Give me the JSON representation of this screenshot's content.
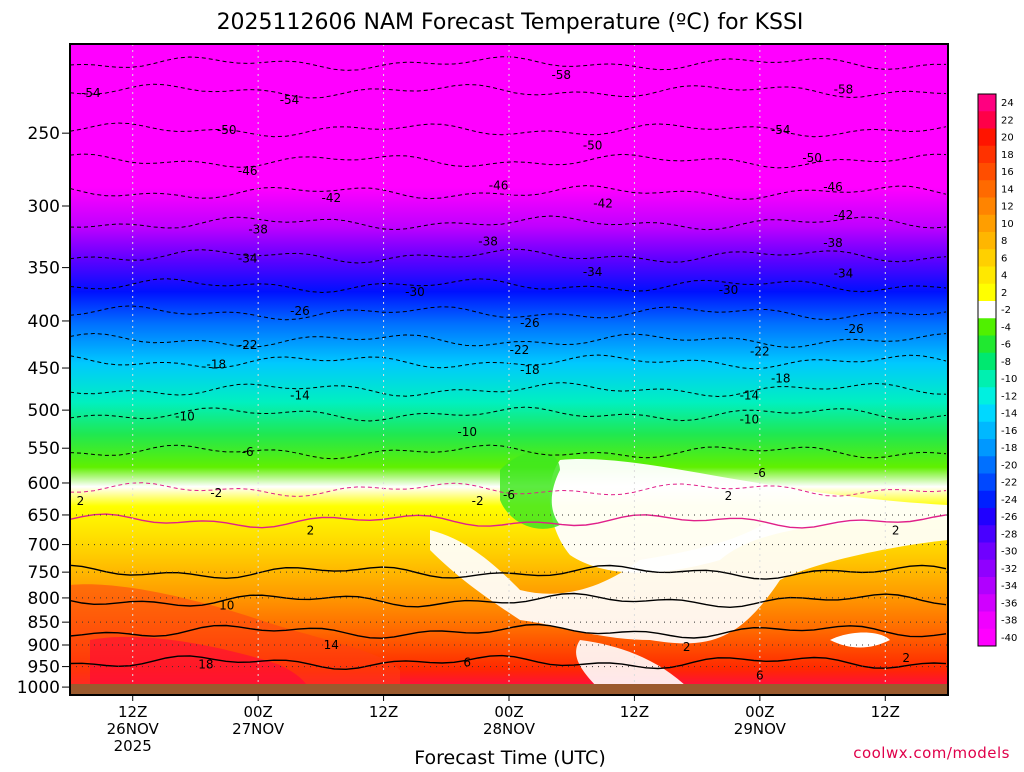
{
  "colors": {
    "credit": "#e0004a",
    "frame": "#000000",
    "ground": "#9b5a2e"
  },
  "chart_data": {
    "type": "heatmap",
    "title": "2025112606 NAM Forecast Temperature (ºC) for KSSI",
    "xlabel": "Forecast Time (UTC)",
    "ylabel": "",
    "credit": "coolwx.com/models",
    "y_axis": {
      "scale": "log",
      "ylim": [
        1020,
        200
      ],
      "ticks": [
        250,
        300,
        350,
        400,
        450,
        500,
        550,
        600,
        650,
        700,
        750,
        800,
        850,
        900,
        950,
        1000
      ]
    },
    "x_axis": {
      "ticks": [
        {
          "time": "12Z",
          "date": "26NOV",
          "year": "2025"
        },
        {
          "time": "00Z",
          "date": "27NOV",
          "year": ""
        },
        {
          "time": "12Z",
          "date": "",
          "year": ""
        },
        {
          "time": "00Z",
          "date": "28NOV",
          "year": ""
        },
        {
          "time": "12Z",
          "date": "",
          "year": ""
        },
        {
          "time": "00Z",
          "date": "29NOV",
          "year": ""
        },
        {
          "time": "12Z",
          "date": "",
          "year": ""
        }
      ],
      "xlim": [
        "2025-11-26 06Z",
        "2025-11-29 18Z"
      ]
    },
    "grid": true,
    "colorbar": {
      "placement": "right",
      "labels": [
        "24",
        "22",
        "20",
        "18",
        "16",
        "14",
        "12",
        "10",
        "8",
        "6",
        "4",
        "2",
        "-2",
        "-4",
        "-6",
        "-8",
        "-10",
        "-12",
        "-14",
        "-16",
        "-18",
        "-20",
        "-22",
        "-24",
        "-26",
        "-28",
        "-30",
        "-32",
        "-34",
        "-36",
        "-38",
        "-40"
      ],
      "colors": [
        "#ff0080",
        "#ff0048",
        "#ff1400",
        "#ff3200",
        "#ff4e00",
        "#ff6a00",
        "#ff8400",
        "#ff9e00",
        "#ffb600",
        "#ffd000",
        "#ffe800",
        "#ffff00",
        "#ffffff",
        "#50f000",
        "#20e830",
        "#00e870",
        "#00f0b0",
        "#00f0e0",
        "#00d8ff",
        "#00b8ff",
        "#0098ff",
        "#0070ff",
        "#0048ff",
        "#0020ff",
        "#2000ff",
        "#4800ff",
        "#7000ff",
        "#9000ff",
        "#b000ff",
        "#d000ff",
        "#f000ff",
        "#ff00ff"
      ]
    },
    "temperature_levels_profile": [
      {
        "value": -58,
        "pressure": 210
      },
      {
        "value": -54,
        "pressure": 225
      },
      {
        "value": -50,
        "pressure": 248
      },
      {
        "value": -46,
        "pressure": 268
      },
      {
        "value": -42,
        "pressure": 290
      },
      {
        "value": -38,
        "pressure": 313
      },
      {
        "value": -34,
        "pressure": 340
      },
      {
        "value": -30,
        "pressure": 366
      },
      {
        "value": -26,
        "pressure": 392
      },
      {
        "value": -22,
        "pressure": 420
      },
      {
        "value": -18,
        "pressure": 443
      },
      {
        "value": -14,
        "pressure": 475
      },
      {
        "value": -10,
        "pressure": 505
      },
      {
        "value": -6,
        "pressure": 555
      },
      {
        "value": -2,
        "pressure": 610
      },
      {
        "value": 2,
        "pressure": 660
      },
      {
        "value": 6,
        "pressure": 750
      },
      {
        "value": 10,
        "pressure": 805
      },
      {
        "value": 14,
        "pressure": 870
      },
      {
        "value": 18,
        "pressure": 940
      }
    ],
    "contour_labels": [
      {
        "text": "-54",
        "time": "2025-11-26 08Z",
        "pressure": 226
      },
      {
        "text": "-54",
        "time": "2025-11-27 03Z",
        "pressure": 230
      },
      {
        "text": "-58",
        "time": "2025-11-28 05Z",
        "pressure": 216
      },
      {
        "text": "-58",
        "time": "2025-11-29 08Z",
        "pressure": 224
      },
      {
        "text": "-50",
        "time": "2025-11-26 21Z",
        "pressure": 248
      },
      {
        "text": "-50",
        "time": "2025-11-28 08Z",
        "pressure": 258
      },
      {
        "text": "-54",
        "time": "2025-11-29 02Z",
        "pressure": 248
      },
      {
        "text": "-46",
        "time": "2025-11-26 23Z",
        "pressure": 275
      },
      {
        "text": "-46",
        "time": "2025-11-27 23Z",
        "pressure": 285
      },
      {
        "text": "-50",
        "time": "2025-11-29 05Z",
        "pressure": 266
      },
      {
        "text": "-42",
        "time": "2025-11-27 07Z",
        "pressure": 294
      },
      {
        "text": "-42",
        "time": "2025-11-28 09Z",
        "pressure": 298
      },
      {
        "text": "-46",
        "time": "2025-11-29 07Z",
        "pressure": 286
      },
      {
        "text": "-38",
        "time": "2025-11-27 00Z",
        "pressure": 318
      },
      {
        "text": "-38",
        "time": "2025-11-27 22Z",
        "pressure": 328
      },
      {
        "text": "-42",
        "time": "2025-11-29 08Z",
        "pressure": 307
      },
      {
        "text": "-34",
        "time": "2025-11-26 23Z",
        "pressure": 342
      },
      {
        "text": "-34",
        "time": "2025-11-28 08Z",
        "pressure": 354
      },
      {
        "text": "-38",
        "time": "2025-11-29 07Z",
        "pressure": 329
      },
      {
        "text": "-30",
        "time": "2025-11-27 15Z",
        "pressure": 372
      },
      {
        "text": "-30",
        "time": "2025-11-28 21Z",
        "pressure": 370
      },
      {
        "text": "-34",
        "time": "2025-11-29 08Z",
        "pressure": 355
      },
      {
        "text": "-26",
        "time": "2025-11-27 04Z",
        "pressure": 390
      },
      {
        "text": "-26",
        "time": "2025-11-28 02Z",
        "pressure": 402
      },
      {
        "text": "-26",
        "time": "2025-11-29 09Z",
        "pressure": 408
      },
      {
        "text": "-22",
        "time": "2025-11-26 23Z",
        "pressure": 425
      },
      {
        "text": "-22",
        "time": "2025-11-28 01Z",
        "pressure": 430
      },
      {
        "text": "-22",
        "time": "2025-11-29 00Z",
        "pressure": 432
      },
      {
        "text": "-18",
        "time": "2025-11-26 20Z",
        "pressure": 446
      },
      {
        "text": "-18",
        "time": "2025-11-28 02Z",
        "pressure": 452
      },
      {
        "text": "-18",
        "time": "2025-11-29 02Z",
        "pressure": 462
      },
      {
        "text": "-14",
        "time": "2025-11-27 04Z",
        "pressure": 482
      },
      {
        "text": "-14",
        "time": "2025-11-28 23Z",
        "pressure": 482
      },
      {
        "text": "-10",
        "time": "2025-11-26 17Z",
        "pressure": 508
      },
      {
        "text": "-10",
        "time": "2025-11-27 20Z",
        "pressure": 528
      },
      {
        "text": "-10",
        "time": "2025-11-28 23Z",
        "pressure": 512
      },
      {
        "text": "-6",
        "time": "2025-11-26 23Z",
        "pressure": 555
      },
      {
        "text": "-6",
        "time": "2025-11-28 00Z",
        "pressure": 618
      },
      {
        "text": "-6",
        "time": "2025-11-29 00Z",
        "pressure": 585
      },
      {
        "text": "-2",
        "time": "2025-11-26 20Z",
        "pressure": 615
      },
      {
        "text": "-2",
        "time": "2025-11-27 21Z",
        "pressure": 628
      },
      {
        "text": "2",
        "time": "2025-11-26 07Z",
        "pressure": 628
      },
      {
        "text": "2",
        "time": "2025-11-27 05Z",
        "pressure": 676
      },
      {
        "text": "2",
        "time": "2025-11-28 21Z",
        "pressure": 620
      },
      {
        "text": "2",
        "time": "2025-11-29 13Z",
        "pressure": 676
      },
      {
        "text": "2",
        "time": "2025-11-28 17Z",
        "pressure": 905
      },
      {
        "text": "2",
        "time": "2025-11-29 14Z",
        "pressure": 930
      },
      {
        "text": "6",
        "time": "2025-11-27 20Z",
        "pressure": 940
      },
      {
        "text": "6",
        "time": "2025-11-29 00Z",
        "pressure": 972
      },
      {
        "text": "10",
        "time": "2025-11-26 21Z",
        "pressure": 815
      },
      {
        "text": "14",
        "time": "2025-11-27 07Z",
        "pressure": 900
      },
      {
        "text": "18",
        "time": "2025-11-26 19Z",
        "pressure": 945
      }
    ]
  }
}
